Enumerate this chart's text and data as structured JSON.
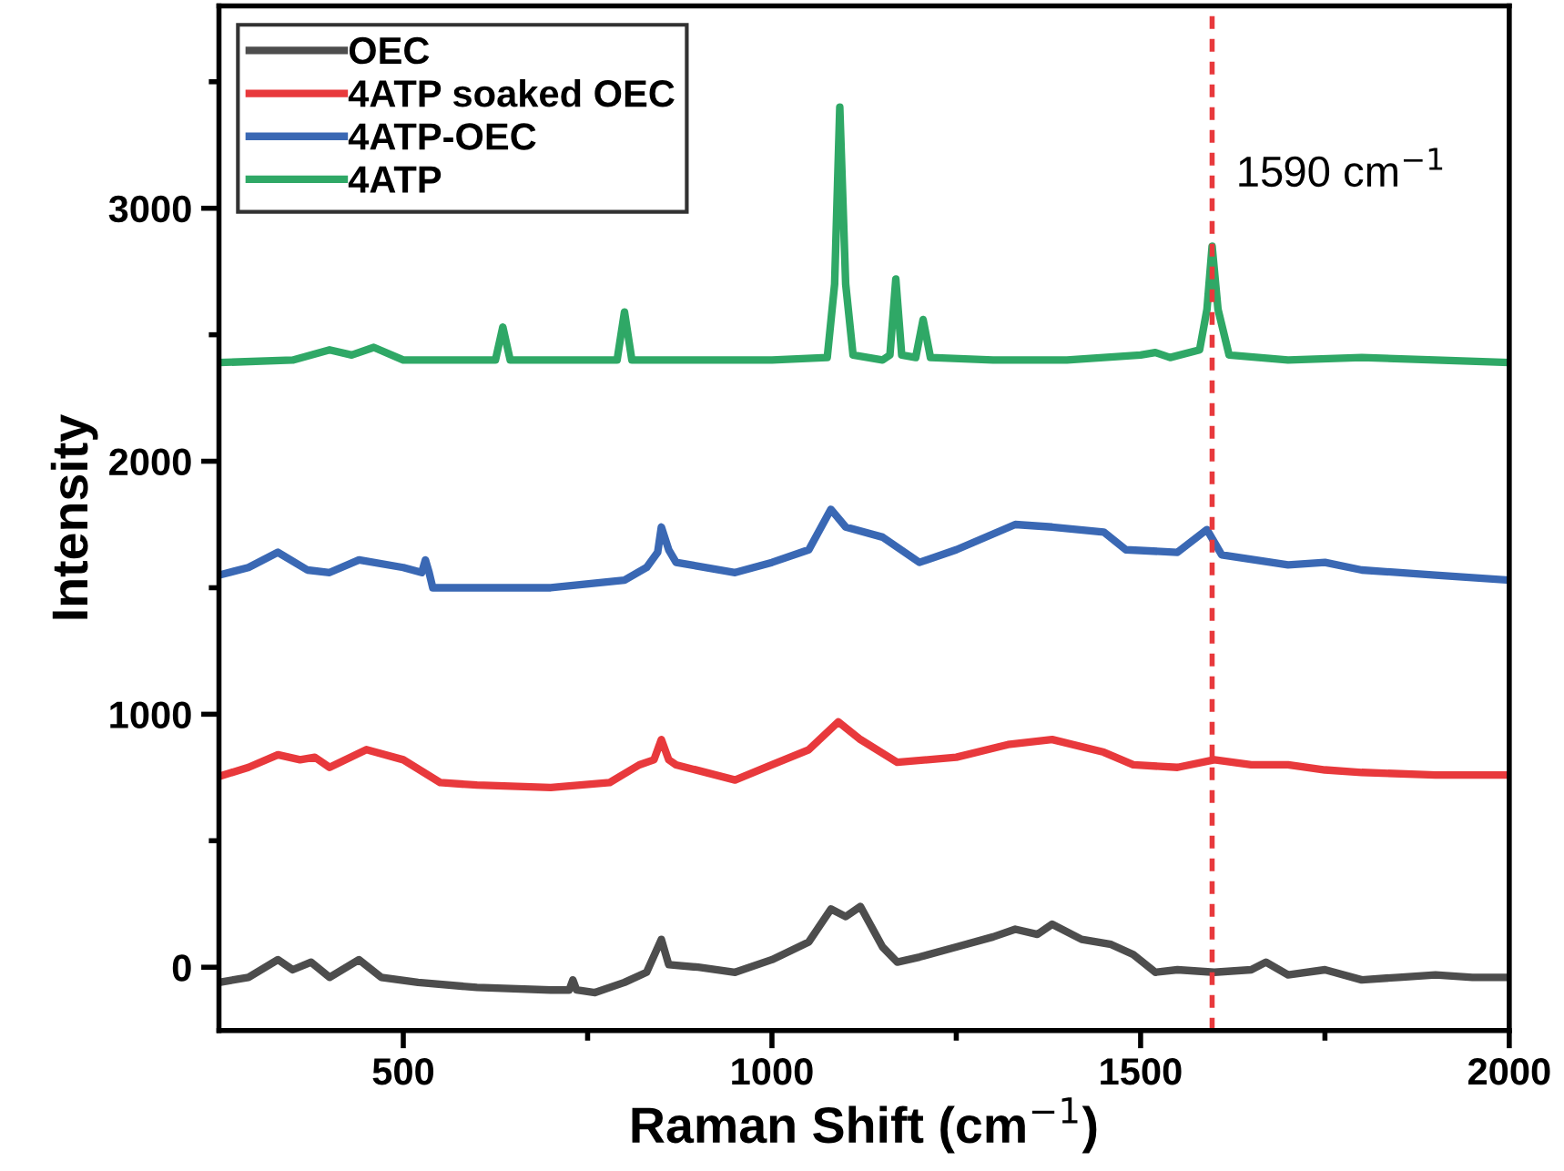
{
  "chart_data": {
    "type": "line",
    "xlabel": "Raman Shift (cm$^{−1}$)",
    "ylabel": "Intensity",
    "xlim": [
      250,
      2000
    ],
    "ylim": [
      -250,
      3800
    ],
    "xticks": [
      500,
      {
        "value": 750,
        "label": null
      },
      1000,
      {
        "value": 1250,
        "label": null
      },
      1500,
      {
        "value": 1750,
        "label": null
      },
      2000
    ],
    "yticks": [
      0,
      {
        "value": 500,
        "label": null
      },
      1000,
      {
        "value": 1500,
        "label": null
      },
      2000,
      {
        "value": 2500,
        "label": null
      },
      3000,
      {
        "value": 3500,
        "label": null
      }
    ],
    "grid": false,
    "legend": "top left",
    "line_style": "solid",
    "marker": "none",
    "ref_lines": [
      {
        "axis": "x",
        "value": 1597,
        "label": "1590 cm$^{−1}$",
        "color": "#e8393c",
        "line_style": "dashed"
      }
    ],
    "series": [
      {
        "name": "OEC",
        "color": "#4d4d4d",
        "x": [
          250,
          290,
          330,
          350,
          375,
          400,
          440,
          470,
          520,
          600,
          700,
          725,
          730,
          735,
          760,
          800,
          830,
          850,
          860,
          900,
          950,
          1000,
          1050,
          1080,
          1100,
          1120,
          1150,
          1170,
          1200,
          1250,
          1300,
          1330,
          1360,
          1380,
          1420,
          1460,
          1490,
          1520,
          1550,
          1600,
          1650,
          1670,
          1700,
          1750,
          1800,
          1850,
          1900,
          1950,
          2000
        ],
        "values": [
          -60,
          -40,
          30,
          -10,
          20,
          -40,
          30,
          -40,
          -60,
          -80,
          -90,
          -90,
          -50,
          -90,
          -100,
          -60,
          -20,
          110,
          10,
          0,
          -20,
          30,
          100,
          230,
          200,
          240,
          80,
          20,
          40,
          80,
          120,
          150,
          130,
          170,
          110,
          90,
          50,
          -20,
          -10,
          -20,
          -10,
          20,
          -30,
          -10,
          -50,
          -40,
          -30,
          -40,
          -40
        ]
      },
      {
        "name": "4ATP soaked OEC",
        "color": "#e8393c",
        "x": [
          250,
          290,
          330,
          360,
          380,
          400,
          450,
          500,
          550,
          600,
          700,
          780,
          820,
          840,
          850,
          860,
          870,
          950,
          1000,
          1050,
          1090,
          1120,
          1170,
          1250,
          1320,
          1380,
          1450,
          1490,
          1550,
          1600,
          1650,
          1700,
          1750,
          1800,
          1900,
          2000
        ],
        "values": [
          754,
          790,
          840,
          820,
          830,
          790,
          860,
          820,
          730,
          720,
          710,
          730,
          800,
          820,
          900,
          820,
          800,
          740,
          800,
          860,
          970,
          900,
          810,
          830,
          880,
          900,
          850,
          800,
          790,
          820,
          800,
          800,
          780,
          770,
          760,
          760
        ]
      },
      {
        "name": "4ATP-OEC",
        "color": "#3a68b4",
        "x": [
          250,
          290,
          330,
          370,
          400,
          440,
          500,
          525,
          530,
          535,
          540,
          600,
          700,
          800,
          830,
          845,
          850,
          860,
          870,
          950,
          1000,
          1050,
          1080,
          1100,
          1150,
          1200,
          1250,
          1330,
          1380,
          1450,
          1480,
          1550,
          1590,
          1610,
          1700,
          1750,
          1800,
          1900,
          2000
        ],
        "values": [
          1550,
          1580,
          1640,
          1570,
          1560,
          1610,
          1580,
          1560,
          1610,
          1560,
          1500,
          1500,
          1500,
          1530,
          1580,
          1640,
          1740,
          1650,
          1600,
          1560,
          1600,
          1650,
          1810,
          1740,
          1700,
          1600,
          1650,
          1750,
          1740,
          1720,
          1650,
          1640,
          1730,
          1630,
          1590,
          1600,
          1570,
          1550,
          1530
        ]
      },
      {
        "name": "4ATP",
        "color": "#2fa866",
        "x": [
          250,
          350,
          400,
          430,
          460,
          500,
          550,
          625,
          635,
          645,
          700,
          790,
          800,
          810,
          900,
          1000,
          1075,
          1085,
          1092,
          1100,
          1110,
          1150,
          1160,
          1168,
          1176,
          1195,
          1205,
          1215,
          1300,
          1400,
          1500,
          1520,
          1540,
          1580,
          1590,
          1597,
          1605,
          1620,
          1700,
          1800,
          1900,
          2000
        ],
        "values": [
          2390,
          2400,
          2440,
          2420,
          2450,
          2400,
          2400,
          2400,
          2530,
          2400,
          2400,
          2400,
          2590,
          2400,
          2400,
          2400,
          2410,
          2700,
          3400,
          2700,
          2420,
          2400,
          2420,
          2720,
          2420,
          2410,
          2560,
          2410,
          2400,
          2400,
          2420,
          2430,
          2410,
          2440,
          2600,
          2850,
          2600,
          2420,
          2400,
          2410,
          2400,
          2390
        ]
      }
    ]
  }
}
